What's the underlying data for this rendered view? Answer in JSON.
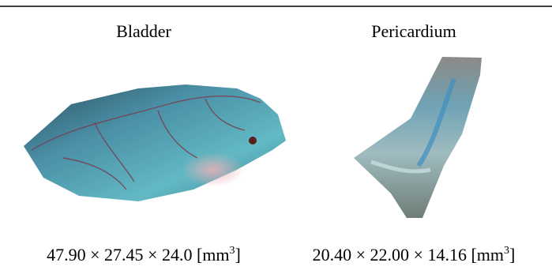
{
  "table": {
    "columns": [
      {
        "title": "Bladder",
        "caption": [
          "47.90 × 27.45 × 24.0 [mm",
          "3",
          "]"
        ]
      },
      {
        "title": "Pericardium",
        "caption": [
          "20.40 × 22.00 × 14.16 [mm",
          "3",
          "]"
        ]
      }
    ]
  }
}
